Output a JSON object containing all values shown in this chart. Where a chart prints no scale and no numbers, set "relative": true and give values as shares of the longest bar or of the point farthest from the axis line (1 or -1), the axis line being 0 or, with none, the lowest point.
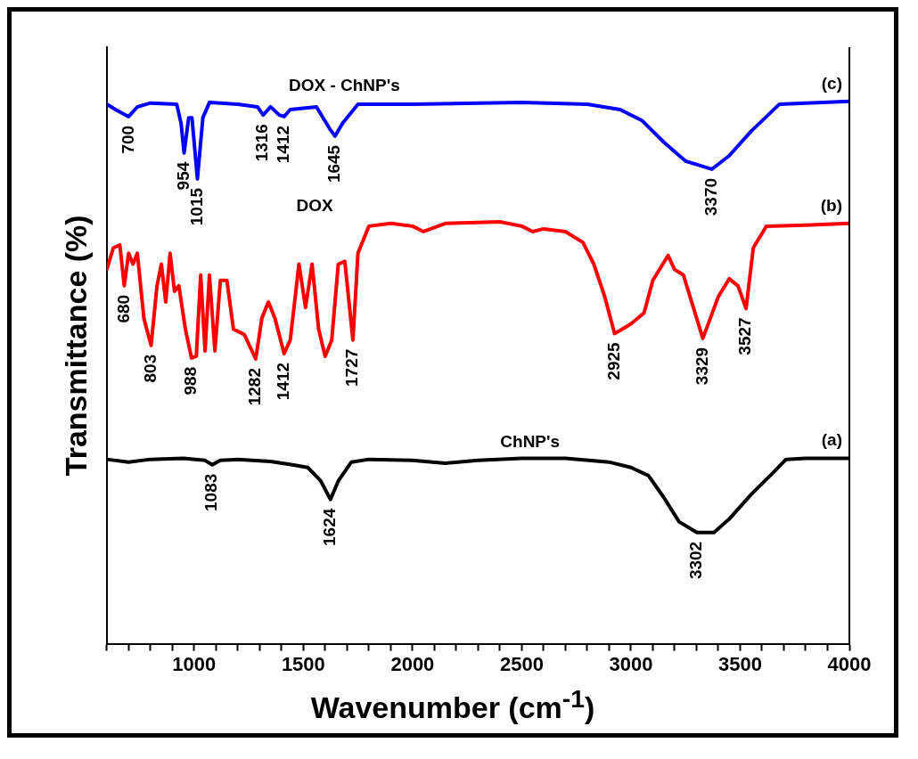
{
  "chart_data": {
    "type": "line",
    "relative": true,
    "xlabel": "Wavenumber (cm$^{-1}$)",
    "ylabel": "Transmittance (%)",
    "xlim": [
      600,
      4000
    ],
    "xticks": [
      {
        "value": 600,
        "label": null
      },
      {
        "value": 700,
        "label": null
      },
      {
        "value": 800,
        "label": null
      },
      {
        "value": 900,
        "label": null
      },
      1000,
      {
        "value": 1100,
        "label": null
      },
      {
        "value": 1200,
        "label": null
      },
      {
        "value": 1300,
        "label": null
      },
      {
        "value": 1400,
        "label": null
      },
      1500,
      {
        "value": 1600,
        "label": null
      },
      {
        "value": 1700,
        "label": null
      },
      {
        "value": 1800,
        "label": null
      },
      {
        "value": 1900,
        "label": null
      },
      2000,
      {
        "value": 2100,
        "label": null
      },
      {
        "value": 2200,
        "label": null
      },
      {
        "value": 2300,
        "label": null
      },
      {
        "value": 2400,
        "label": null
      },
      2500,
      {
        "value": 2600,
        "label": null
      },
      {
        "value": 2700,
        "label": null
      },
      {
        "value": 2800,
        "label": null
      },
      {
        "value": 2900,
        "label": null
      },
      3000,
      {
        "value": 3100,
        "label": null
      },
      {
        "value": 3200,
        "label": null
      },
      {
        "value": 3300,
        "label": null
      },
      {
        "value": 3400,
        "label": null
      },
      3500,
      {
        "value": 3600,
        "label": null
      },
      {
        "value": 3700,
        "label": null
      },
      {
        "value": 3800,
        "label": null
      },
      {
        "value": 3900,
        "label": null
      },
      4000
    ],
    "grid": false,
    "legend": false,
    "marker": "none",
    "line_style": "solid",
    "series": [
      {
        "name": "ChNP's",
        "color": "#000000",
        "x": [
          600,
          700,
          800,
          950,
          1050,
          1083,
          1120,
          1200,
          1350,
          1450,
          1520,
          1580,
          1624,
          1660,
          1720,
          1800,
          2000,
          2150,
          2300,
          2500,
          2700,
          2900,
          3000,
          3080,
          3150,
          3220,
          3302,
          3380,
          3450,
          3550,
          3650,
          3710,
          3800,
          4000
        ],
        "values": [
          0.34,
          0.335,
          0.34,
          0.342,
          0.338,
          0.33,
          0.338,
          0.34,
          0.336,
          0.33,
          0.325,
          0.3,
          0.266,
          0.3,
          0.335,
          0.34,
          0.338,
          0.333,
          0.338,
          0.342,
          0.342,
          0.335,
          0.325,
          0.31,
          0.27,
          0.225,
          0.205,
          0.205,
          0.23,
          0.275,
          0.315,
          0.34,
          0.342,
          0.342
        ]
      },
      {
        "name": "DOX",
        "color": "#ff0000",
        "x": [
          600,
          630,
          660,
          680,
          700,
          720,
          740,
          770,
          803,
          830,
          850,
          870,
          890,
          910,
          930,
          960,
          988,
          1010,
          1030,
          1050,
          1070,
          1095,
          1120,
          1150,
          1180,
          1230,
          1282,
          1310,
          1340,
          1370,
          1412,
          1440,
          1480,
          1510,
          1540,
          1570,
          1600,
          1630,
          1660,
          1690,
          1727,
          1750,
          1800,
          1900,
          2000,
          2050,
          2150,
          2400,
          2500,
          2550,
          2600,
          2700,
          2780,
          2830,
          2880,
          2925,
          2960,
          3000,
          3060,
          3100,
          3170,
          3200,
          3240,
          3329,
          3400,
          3450,
          3490,
          3527,
          3560,
          3620,
          3800,
          4000
        ],
        "values": [
          0.69,
          0.73,
          0.735,
          0.66,
          0.72,
          0.7,
          0.72,
          0.6,
          0.55,
          0.66,
          0.7,
          0.63,
          0.72,
          0.65,
          0.66,
          0.58,
          0.527,
          0.53,
          0.68,
          0.54,
          0.68,
          0.54,
          0.67,
          0.67,
          0.58,
          0.57,
          0.525,
          0.6,
          0.63,
          0.6,
          0.535,
          0.56,
          0.7,
          0.62,
          0.7,
          0.58,
          0.53,
          0.56,
          0.7,
          0.705,
          0.56,
          0.72,
          0.77,
          0.775,
          0.77,
          0.76,
          0.775,
          0.778,
          0.77,
          0.76,
          0.765,
          0.76,
          0.74,
          0.7,
          0.64,
          0.572,
          0.58,
          0.59,
          0.61,
          0.67,
          0.716,
          0.69,
          0.68,
          0.563,
          0.64,
          0.673,
          0.66,
          0.618,
          0.73,
          0.77,
          0.772,
          0.775
        ]
      },
      {
        "name": "DOX - ChNP's",
        "color": "#0000ff",
        "x": [
          600,
          640,
          700,
          740,
          800,
          920,
          940,
          954,
          975,
          990,
          1015,
          1040,
          1070,
          1200,
          1290,
          1316,
          1350,
          1390,
          1412,
          1440,
          1560,
          1620,
          1645,
          1680,
          1750,
          2000,
          2500,
          2800,
          2950,
          3050,
          3150,
          3250,
          3370,
          3450,
          3550,
          3680,
          4000
        ],
        "values": [
          0.995,
          0.985,
          0.972,
          0.99,
          0.997,
          0.995,
          0.96,
          0.905,
          0.97,
          0.97,
          0.857,
          0.97,
          0.998,
          0.995,
          0.99,
          0.975,
          0.99,
          0.975,
          0.972,
          0.985,
          0.99,
          0.95,
          0.936,
          0.96,
          0.995,
          0.995,
          0.998,
          0.995,
          0.985,
          0.965,
          0.925,
          0.89,
          0.875,
          0.9,
          0.945,
          0.995,
          1.0
        ]
      }
    ],
    "annotations": [
      {
        "text": "1083",
        "x": 1083,
        "y": 0.33
      },
      {
        "text": "1624",
        "x": 1624,
        "y": 0.266
      },
      {
        "text": "3302",
        "x": 3302,
        "y": 0.205
      },
      {
        "text": "680",
        "x": 680,
        "y": 0.66
      },
      {
        "text": "803",
        "x": 803,
        "y": 0.55
      },
      {
        "text": "988",
        "x": 988,
        "y": 0.527
      },
      {
        "text": "1282",
        "x": 1282,
        "y": 0.525
      },
      {
        "text": "1412",
        "x": 1412,
        "y": 0.535
      },
      {
        "text": "1727",
        "x": 1727,
        "y": 0.56
      },
      {
        "text": "2925",
        "x": 2925,
        "y": 0.572
      },
      {
        "text": "3329",
        "x": 3329,
        "y": 0.563
      },
      {
        "text": "3527",
        "x": 3527,
        "y": 0.618
      },
      {
        "text": "700",
        "x": 700,
        "y": 0.972
      },
      {
        "text": "954",
        "x": 954,
        "y": 0.905
      },
      {
        "text": "1015",
        "x": 1015,
        "y": 0.857
      },
      {
        "text": "1316",
        "x": 1316,
        "y": 0.975
      },
      {
        "text": "1412",
        "x": 1412,
        "y": 0.972
      },
      {
        "text": "1645",
        "x": 1645,
        "y": 0.936
      },
      {
        "text": "3370",
        "x": 3370,
        "y": 0.875
      },
      "(a)",
      "(b)",
      "(c)"
    ]
  }
}
